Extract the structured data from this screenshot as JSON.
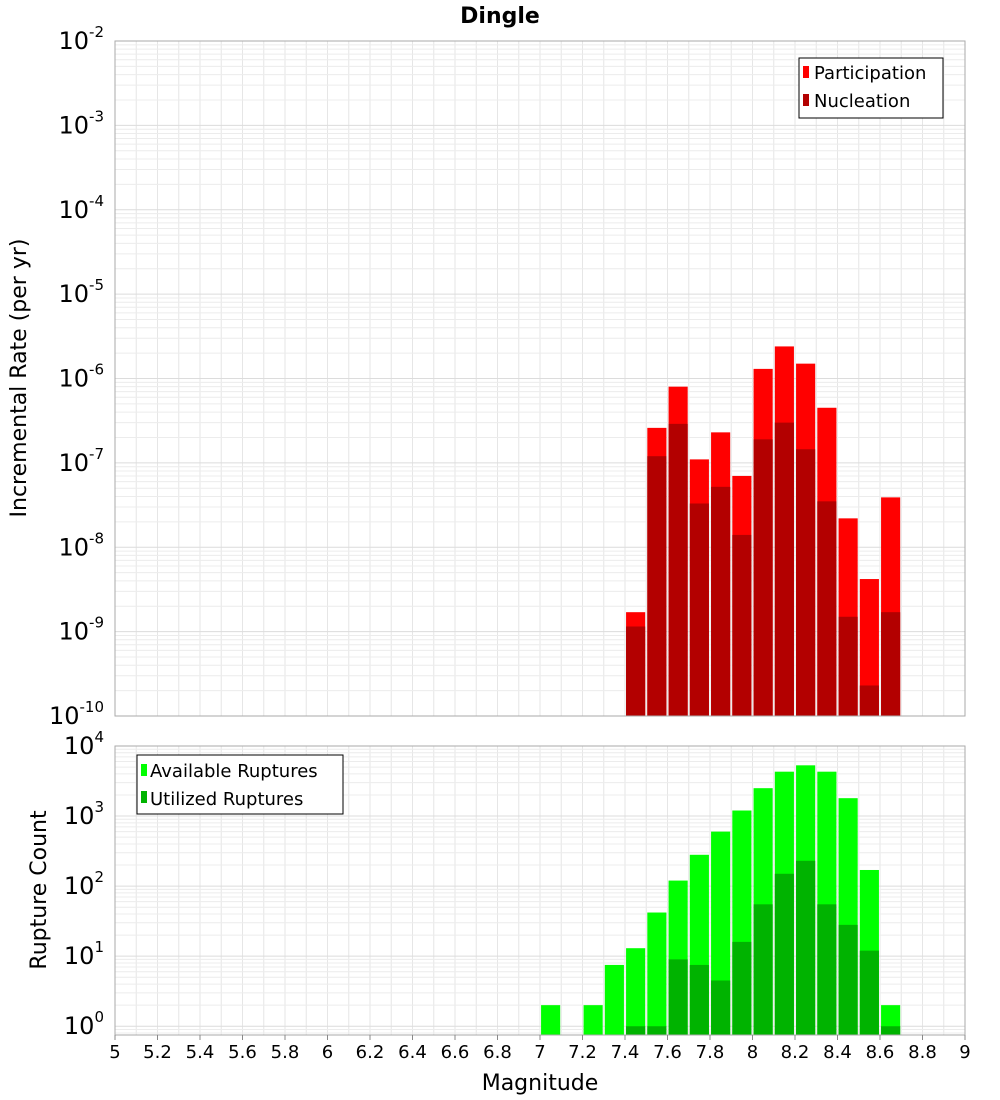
{
  "chart_data": [
    {
      "type": "bar",
      "title": "Dingle",
      "xlabel": "",
      "ylabel": "Incremental Rate (per yr)",
      "yscale": "log",
      "xlim": [
        5,
        9
      ],
      "ylim": [
        1e-10,
        0.01
      ],
      "ytick_labels": [
        "10^-10",
        "10^-9",
        "10^-8",
        "10^-7",
        "10^-6",
        "10^-5",
        "10^-4",
        "10^-3",
        "10^-2"
      ],
      "legend_position": "top-right",
      "grid": true,
      "x": [
        7.45,
        7.55,
        7.65,
        7.75,
        7.85,
        7.95,
        8.05,
        8.15,
        8.25,
        8.35,
        8.45,
        8.55,
        8.65
      ],
      "series": [
        {
          "name": "Participation",
          "color": "#ff0000",
          "values": [
            1.7e-09,
            2.6e-07,
            8e-07,
            1.1e-07,
            2.3e-07,
            7e-08,
            1.3e-06,
            2.4e-06,
            1.5e-06,
            4.5e-07,
            2.2e-08,
            4.2e-09,
            3.9e-08
          ]
        },
        {
          "name": "Nucleation",
          "color": "#b30000",
          "values": [
            1.15e-09,
            1.2e-07,
            2.9e-07,
            3.3e-08,
            5.2e-08,
            1.4e-08,
            1.9e-07,
            3e-07,
            1.45e-07,
            3.5e-08,
            1.5e-09,
            2.3e-10,
            1.7e-09
          ]
        }
      ]
    },
    {
      "type": "bar",
      "title": "",
      "xlabel": "Magnitude",
      "ylabel": "Rupture Count",
      "yscale": "log",
      "xlim": [
        5,
        9
      ],
      "ylim": [
        0.75,
        10000
      ],
      "ytick_labels": [
        "10^0",
        "10^1",
        "10^2",
        "10^3",
        "10^4"
      ],
      "xtick_labels": [
        "5",
        "5.2",
        "5.4",
        "5.6",
        "5.8",
        "6",
        "6.2",
        "6.4",
        "6.6",
        "6.8",
        "7",
        "7.2",
        "7.4",
        "7.6",
        "7.8",
        "8",
        "8.2",
        "8.4",
        "8.6",
        "8.8",
        "9"
      ],
      "legend_position": "top-left",
      "grid": true,
      "x": [
        7.05,
        7.25,
        7.35,
        7.45,
        7.55,
        7.65,
        7.75,
        7.85,
        7.95,
        8.05,
        8.15,
        8.25,
        8.35,
        8.45,
        8.55,
        8.65
      ],
      "series": [
        {
          "name": "Available Ruptures",
          "color": "#00ff00",
          "values": [
            2,
            2,
            7.5,
            13,
            42,
            120,
            280,
            600,
            1200,
            2500,
            4300,
            5300,
            4300,
            1800,
            170,
            2
          ]
        },
        {
          "name": "Utilized Ruptures",
          "color": "#00b300",
          "values": [
            null,
            null,
            null,
            1,
            1,
            9,
            7.5,
            4.5,
            16,
            55,
            150,
            230,
            55,
            28,
            12,
            1
          ]
        }
      ]
    }
  ]
}
